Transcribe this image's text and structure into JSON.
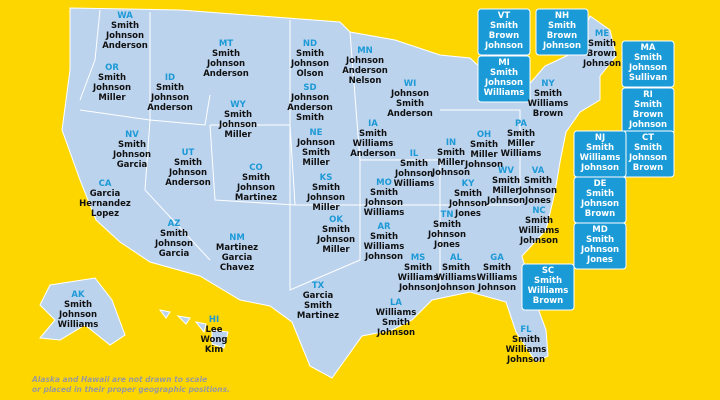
{
  "states": [
    {
      "abbr": "WA",
      "names": [
        "Smith",
        "Johnson",
        "Anderson"
      ]
    },
    {
      "abbr": "OR",
      "names": [
        "Smith",
        "Johnson",
        "Miller"
      ]
    },
    {
      "abbr": "ID",
      "names": [
        "Smith",
        "Johnson",
        "Anderson"
      ]
    },
    {
      "abbr": "MT",
      "names": [
        "Smith",
        "Johnson",
        "Anderson"
      ]
    },
    {
      "abbr": "WY",
      "names": [
        "Smith",
        "Johnson",
        "Miller"
      ]
    },
    {
      "abbr": "ND",
      "names": [
        "Smith",
        "Johnson",
        "Olson"
      ]
    },
    {
      "abbr": "SD",
      "names": [
        "Johnson",
        "Anderson",
        "Smith"
      ]
    },
    {
      "abbr": "MN",
      "names": [
        "Johnson",
        "Anderson",
        "Nelson"
      ]
    },
    {
      "abbr": "WI",
      "names": [
        "Johnson",
        "Smith",
        "Anderson"
      ]
    },
    {
      "abbr": "MI",
      "names": [
        "Smith",
        "Johnson",
        "Williams"
      ]
    },
    {
      "abbr": "NV",
      "names": [
        "Smith",
        "Johnson",
        "Garcia"
      ]
    },
    {
      "abbr": "UT",
      "names": [
        "Smith",
        "Johnson",
        "Anderson"
      ]
    },
    {
      "abbr": "CA",
      "names": [
        "Garcia",
        "Hernandez",
        "Lopez"
      ]
    },
    {
      "abbr": "CO",
      "names": [
        "Smith",
        "Johnson",
        "Martinez"
      ]
    },
    {
      "abbr": "NE",
      "names": [
        "Johnson",
        "Smith",
        "Miller"
      ]
    },
    {
      "abbr": "KS",
      "names": [
        "Smith",
        "Johnson",
        "Miller"
      ]
    },
    {
      "abbr": "IA",
      "names": [
        "Smith",
        "Williams",
        "Anderson"
      ]
    },
    {
      "abbr": "IL",
      "names": [
        "Smith",
        "Johnson",
        "Williams"
      ]
    },
    {
      "abbr": "IN",
      "names": [
        "Smith",
        "Miller",
        "Johnson"
      ]
    },
    {
      "abbr": "OH",
      "names": [
        "Smith",
        "Miller",
        "Johnson"
      ]
    },
    {
      "abbr": "MO",
      "names": [
        "Smith",
        "Johnson",
        "Williams"
      ]
    },
    {
      "abbr": "KY",
      "names": [
        "Smith",
        "Johnson",
        "Jones"
      ]
    },
    {
      "abbr": "WV",
      "names": [
        "Smith",
        "Miller",
        "Johnson"
      ]
    },
    {
      "abbr": "VA",
      "names": [
        "Smith",
        "Johnson",
        "Jones"
      ]
    },
    {
      "abbr": "PA",
      "names": [
        "Smith",
        "Miller",
        "Williams"
      ]
    },
    {
      "abbr": "NY",
      "names": [
        "Smith",
        "Williams",
        "Brown"
      ]
    },
    {
      "abbr": "AZ",
      "names": [
        "Smith",
        "Johnson",
        "Garcia"
      ]
    },
    {
      "abbr": "NM",
      "names": [
        "Martinez",
        "Garcia",
        "Chavez"
      ]
    },
    {
      "abbr": "OK",
      "names": [
        "Smith",
        "Johnson",
        "Miller"
      ]
    },
    {
      "abbr": "AR",
      "names": [
        "Smith",
        "Williams",
        "Johnson"
      ]
    },
    {
      "abbr": "TN",
      "names": [
        "Smith",
        "Johnson",
        "Jones"
      ]
    },
    {
      "abbr": "NC",
      "names": [
        "Smith",
        "Williams",
        "Johnson"
      ]
    },
    {
      "abbr": "MS",
      "names": [
        "Smith",
        "Williams",
        "Johnson"
      ]
    },
    {
      "abbr": "AL",
      "names": [
        "Smith",
        "Williams",
        "Johnson"
      ]
    },
    {
      "abbr": "GA",
      "names": [
        "Smith",
        "Williams",
        "Johnson"
      ]
    },
    {
      "abbr": "TX",
      "names": [
        "Garcia",
        "Smith",
        "Martinez"
      ]
    },
    {
      "abbr": "LA",
      "names": [
        "Williams",
        "Smith",
        "Johnson"
      ]
    },
    {
      "abbr": "FL",
      "names": [
        "Smith",
        "Williams",
        "Johnson"
      ]
    },
    {
      "abbr": "AK",
      "names": [
        "Smith",
        "Johnson",
        "Williams"
      ]
    },
    {
      "abbr": "HI",
      "names": [
        "Lee",
        "Wong",
        "Kim"
      ]
    },
    {
      "abbr": "ME",
      "names": [
        "Smith",
        "Brown",
        "Johnson"
      ]
    },
    {
      "abbr": "VT",
      "names": [
        "Smith",
        "Brown",
        "Johnson"
      ]
    },
    {
      "abbr": "NH",
      "names": [
        "Smith",
        "Brown",
        "Johnson"
      ]
    },
    {
      "abbr": "MA",
      "names": [
        "Smith",
        "Johnson",
        "Sullivan"
      ]
    },
    {
      "abbr": "RI",
      "names": [
        "Smith",
        "Brown",
        "Johnson"
      ]
    },
    {
      "abbr": "CT",
      "names": [
        "Smith",
        "Johnson",
        "Brown"
      ]
    },
    {
      "abbr": "NJ",
      "names": [
        "Smith",
        "Williams",
        "Johnson"
      ]
    },
    {
      "abbr": "DE",
      "names": [
        "Smith",
        "Johnson",
        "Brown"
      ]
    },
    {
      "abbr": "MD",
      "names": [
        "Smith",
        "Johnson",
        "Jones"
      ]
    },
    {
      "abbr": "SC",
      "names": [
        "Smith",
        "Williams",
        "Brown"
      ]
    }
  ],
  "footnote": [
    "Alaska and Hawaii are not drawn to scale",
    "or placed in their proper geographic positions."
  ]
}
